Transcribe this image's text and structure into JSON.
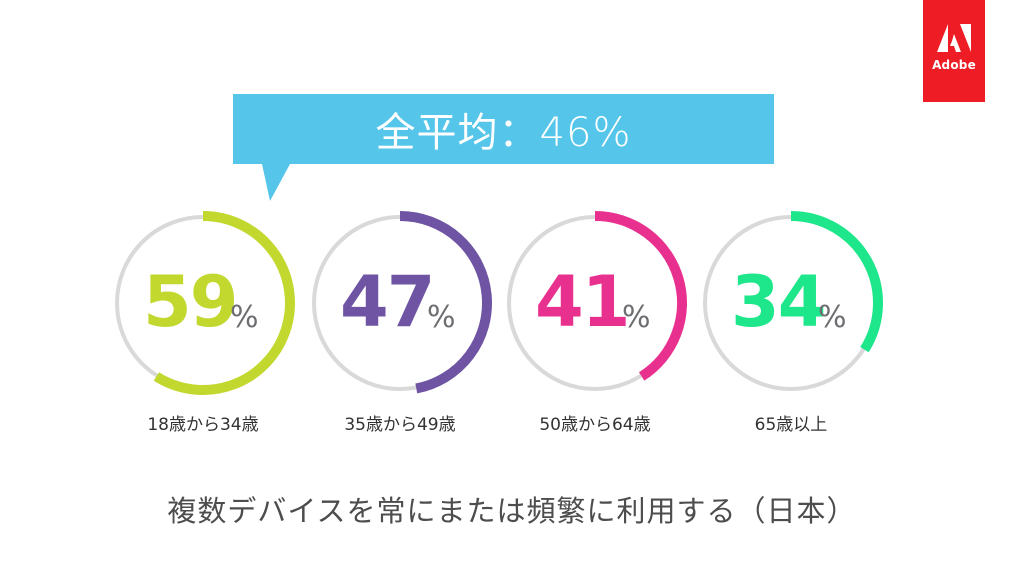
{
  "brand": {
    "name": "Adobe",
    "color": "#ee1c24"
  },
  "callout": {
    "text": "全平均：46%",
    "color": "#55c5ea"
  },
  "caption": "複数デバイスを常にまたは頻繁に利用する（日本）",
  "chart_data": {
    "type": "donut",
    "unit": "%",
    "track_color": "#d9d9d9",
    "series": [
      {
        "category": "18歳から34歳",
        "value": 59,
        "color": "#c2d82e"
      },
      {
        "category": "35歳から49歳",
        "value": 47,
        "color": "#6e54a3"
      },
      {
        "category": "50歳から64歳",
        "value": 41,
        "color": "#e8318f"
      },
      {
        "category": "65歳以上",
        "value": 34,
        "color": "#1ee68a"
      }
    ],
    "average": 46
  }
}
